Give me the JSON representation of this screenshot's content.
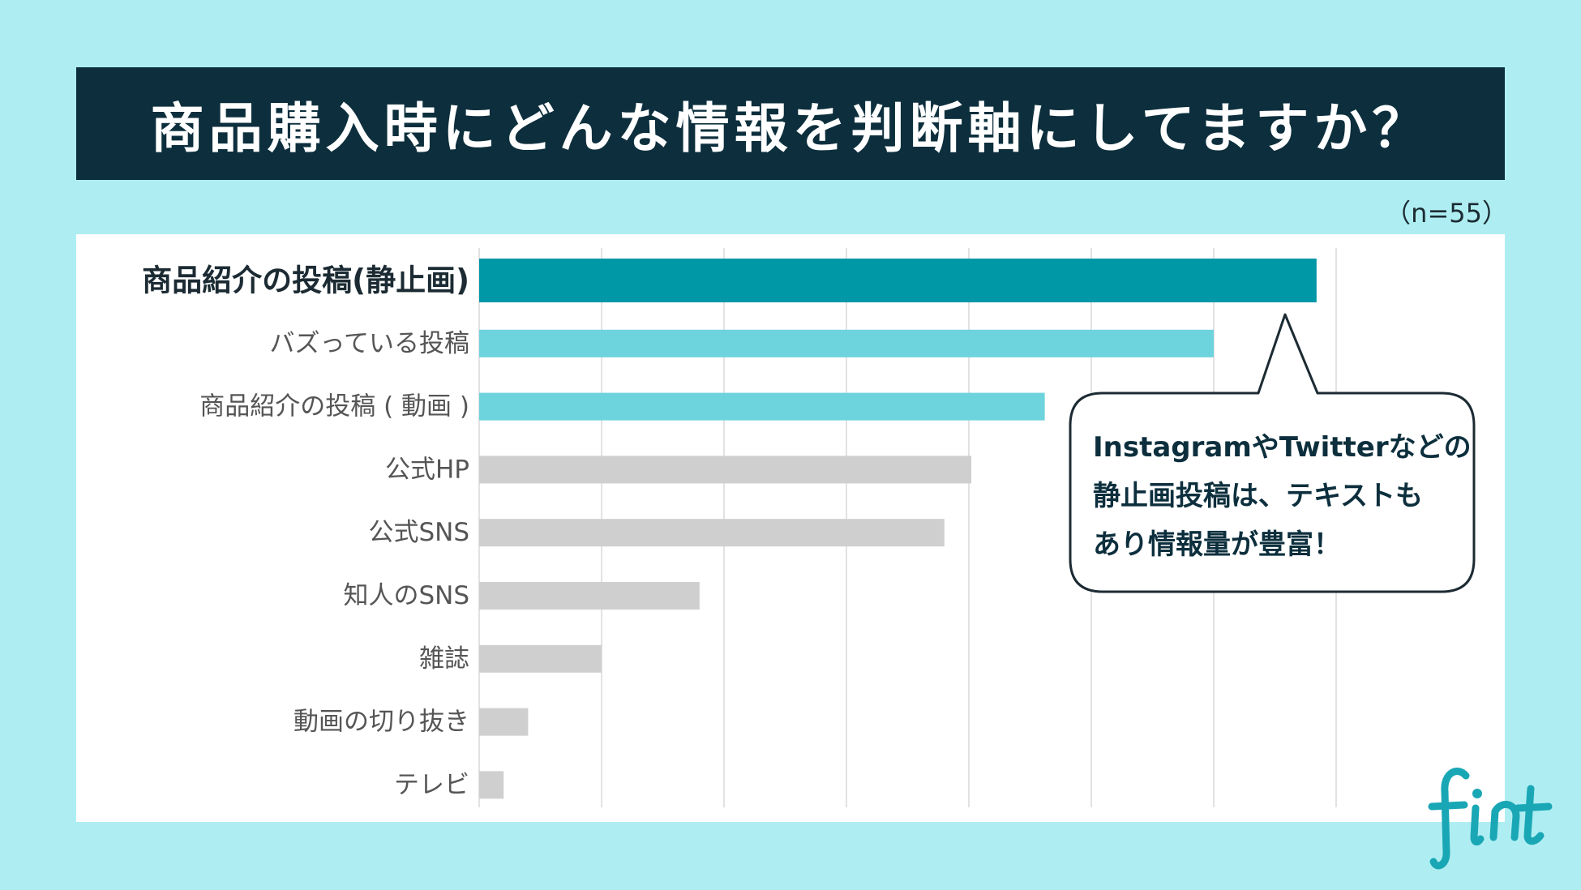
{
  "title": "商品購入時にどんな情報を判断軸にしてますか？",
  "sample_size": "（n=55）",
  "callout": {
    "lines": [
      "InstagramやTwitterなどの",
      "静止画投稿は、テキストも",
      "あり情報量が豊富！"
    ]
  },
  "logo": {
    "text": "fint",
    "icon": "fint-logo"
  },
  "colors": {
    "background": "#aeeef2",
    "title_bg": "#0d2f3d",
    "highlight_dark": "#0097a7",
    "highlight_light": "#6dd3dc",
    "neutral": "#d0cfd0",
    "grid": "#e2e2e2"
  },
  "chart_data": {
    "type": "bar",
    "orientation": "horizontal",
    "categories": [
      "商品紹介の投稿(静止画)",
      "バズっている投稿",
      "商品紹介の投稿 ( 動画 )",
      "公式HP",
      "公式SNS",
      "知人のSNS",
      "雑誌",
      "動画の切り抜き",
      "テレビ"
    ],
    "values": [
      34.2,
      30.0,
      23.1,
      20.1,
      19.0,
      9.0,
      5.0,
      2.0,
      1.0
    ],
    "emphasis": [
      true,
      false,
      false,
      false,
      false,
      false,
      false,
      false,
      false
    ],
    "bar_colors": [
      "#0097a7",
      "#6dd3dc",
      "#6dd3dc",
      "#d0cfd0",
      "#d0cfd0",
      "#d0cfd0",
      "#d0cfd0",
      "#d0cfd0",
      "#d0cfd0"
    ],
    "xlim": [
      0,
      35
    ],
    "grid_step": 5,
    "grid": true,
    "legend": "none"
  }
}
